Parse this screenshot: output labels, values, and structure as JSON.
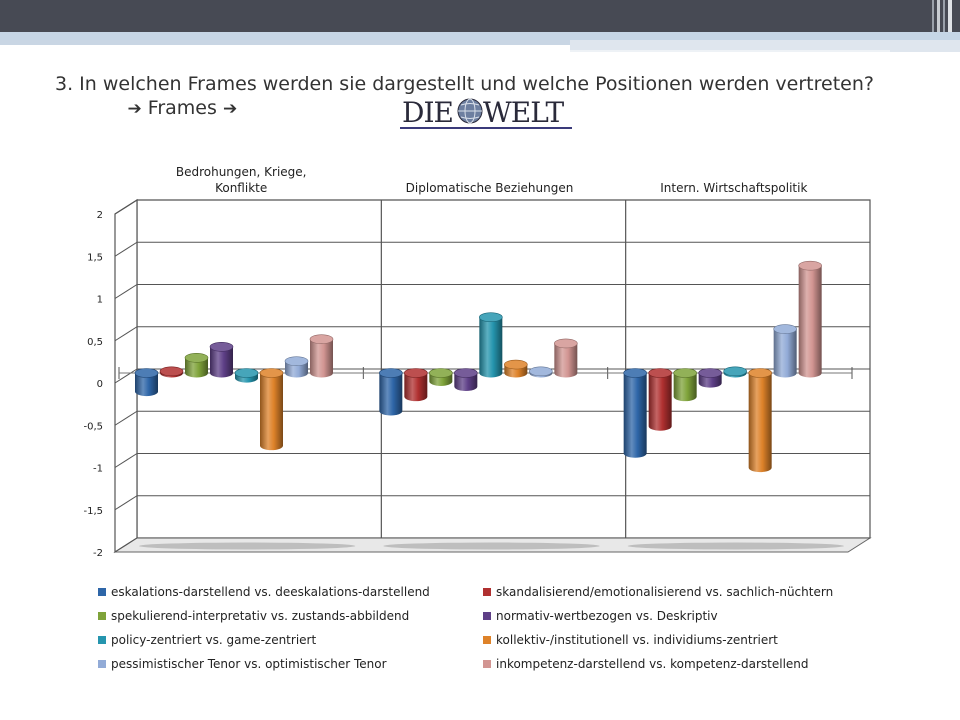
{
  "slide": {
    "title_text": "3. In welchen Frames werden sie dargestellt und welche Positionen werden vertreten?",
    "arrow1": "➔",
    "frames_text": "Frames",
    "arrow2": "➔",
    "logo_text_left": "DIE",
    "logo_text_right": "WELT",
    "colors": {
      "topbar": "#474a54",
      "band": "#c6d6e6",
      "logo_text": "#2a2a3a",
      "logo_underline": "#3a3a7a"
    }
  },
  "chart_data": {
    "type": "bar",
    "categories": [
      "Bedrohungen, Kriege, Konflikte",
      "Diplomatische Beziehungen",
      "Intern. Wirtschaftspolitik"
    ],
    "category_label_lines": [
      [
        "Bedrohungen, Kriege,",
        "Konflikte"
      ],
      [
        "Diplomatische Beziehungen"
      ],
      [
        "Intern. Wirtschaftspolitik"
      ]
    ],
    "ylim": [
      -2,
      2
    ],
    "yticks": [
      "2",
      "1,5",
      "1",
      "0,5",
      "0",
      "-0,5",
      "-1",
      "-1,5",
      "-2"
    ],
    "series": [
      {
        "name": "eskalations-darstellend vs. deeskalations-darstellend",
        "color": "#2e66a8",
        "values": [
          -0.22,
          -0.45,
          -0.95
        ]
      },
      {
        "name": "skandalisierend/emotionalisierend vs. sachlich-nüchtern",
        "color": "#b03030",
        "values": [
          0.02,
          -0.28,
          -0.63
        ]
      },
      {
        "name": "spekulierend-interpretativ vs. zustands-abbildend",
        "color": "#7fa33a",
        "values": [
          0.18,
          -0.1,
          -0.28
        ]
      },
      {
        "name": "normativ-wertbezogen vs. Deskriptiv",
        "color": "#5e3f87",
        "values": [
          0.31,
          -0.16,
          -0.12
        ]
      },
      {
        "name": "policy-zentriert vs. game-zentriert",
        "color": "#2595ae",
        "values": [
          -0.06,
          0.66,
          0.02
        ]
      },
      {
        "name": "kollektiv-/institutionell vs. individiums-zentriert",
        "color": "#de8229",
        "values": [
          -0.86,
          0.1,
          -1.12
        ]
      },
      {
        "name": "pessimistischer Tenor  vs. optimistischer Tenor",
        "color": "#92abd7",
        "values": [
          0.14,
          0.02,
          0.52
        ]
      },
      {
        "name": "inkompetenz-darstellend vs. kompetenz-darstellend",
        "color": "#d29592",
        "values": [
          0.4,
          0.35,
          1.27
        ]
      }
    ],
    "legend_position": "bottom",
    "grid": true,
    "style": "3d-cylinder"
  }
}
